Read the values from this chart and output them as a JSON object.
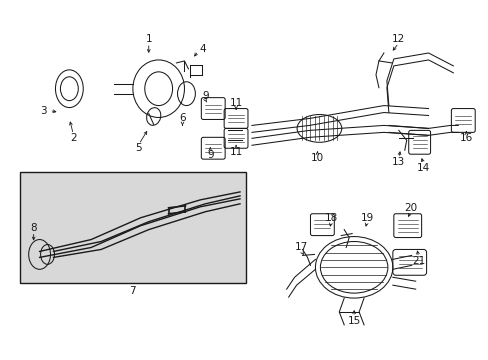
{
  "bg_color": "#ffffff",
  "inset_bg": "#e8e8e8",
  "line_color": "#1a1a1a",
  "label_fontsize": 7.5,
  "fig_width": 4.89,
  "fig_height": 3.6,
  "dpi": 100
}
